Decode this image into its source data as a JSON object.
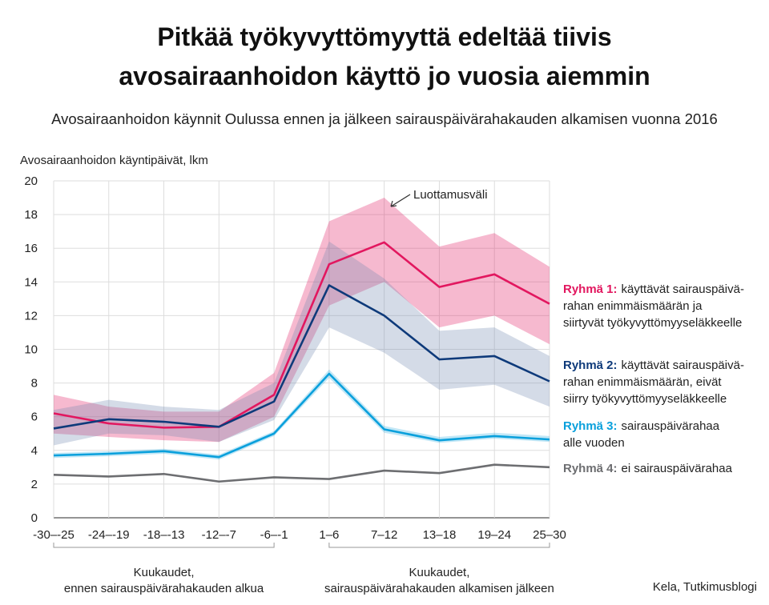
{
  "chart_data": {
    "type": "line",
    "title": [
      "Pitkää työkyvyttömyyttä edeltää tiivis",
      "avosairaanhoidon käyttö jo vuosia aiemmin"
    ],
    "subtitle": "Avosairaanhoidon käynnit Oulussa ennen ja jälkeen sairauspäivärahakauden alkamisen vuonna 2016",
    "y_label": "Avosairaanhoidon käyntipäivät, lkm",
    "categories": [
      "-30–-25",
      "-24–-19",
      "-18–-13",
      "-12–-7",
      "-6–-1",
      "1–6",
      "7–12",
      "13–18",
      "19–24",
      "25–30"
    ],
    "x_groups": [
      {
        "lines": [
          "Kuukaudet,",
          "ennen sairauspäivärahakauden alkua"
        ],
        "from": 0,
        "to": 4
      },
      {
        "lines": [
          "Kuukaudet,",
          "sairauspäivärahakauden alkamisen jälkeen"
        ],
        "from": 5,
        "to": 9
      }
    ],
    "annotation": "Luottamusväli",
    "source": "Kela, Tutkimusblogi",
    "ylim": [
      0,
      20
    ],
    "yticks": [
      0,
      2,
      4,
      6,
      8,
      10,
      12,
      14,
      16,
      18,
      20
    ],
    "grid": true,
    "series": [
      {
        "name": "Ryhmä 1:",
        "description": [
          "käyttävät sairauspäivä-",
          "rahan enimmäismäärän ja",
          "siirtyvät työkyvyttömyyseläkkeelle"
        ],
        "color": "#e2175f",
        "band_color": "#e2175f",
        "values": [
          6.2,
          5.6,
          5.35,
          5.4,
          7.3,
          15.05,
          16.35,
          13.7,
          14.45,
          12.7
        ],
        "lower": [
          5.0,
          4.8,
          4.6,
          4.5,
          6.0,
          12.6,
          14.0,
          11.3,
          12.0,
          10.3
        ],
        "upper": [
          7.3,
          6.6,
          6.3,
          6.3,
          8.6,
          17.6,
          19.0,
          16.1,
          16.9,
          14.9
        ]
      },
      {
        "name": "Ryhmä 2:",
        "description": [
          "käyttävät sairauspäivä-",
          "rahan enimmäismäärän, eivät",
          "siirry työkyvyttömyyseläkkeelle"
        ],
        "color": "#0e3a7a",
        "band_color": "#6f88b0",
        "values": [
          5.3,
          5.85,
          5.7,
          5.4,
          6.9,
          13.8,
          12.0,
          9.4,
          9.6,
          8.1
        ],
        "lower": [
          4.3,
          5.0,
          4.9,
          4.5,
          5.8,
          11.3,
          9.8,
          7.6,
          7.9,
          6.6
        ],
        "upper": [
          6.4,
          7.0,
          6.6,
          6.4,
          8.0,
          16.4,
          14.2,
          11.1,
          11.3,
          9.6
        ]
      },
      {
        "name": "Ryhmä 3:",
        "description": [
          "sairauspäivärahaa",
          "alle vuoden"
        ],
        "color": "#0aa0dc",
        "band_color": "#0aa0dc",
        "values": [
          3.7,
          3.8,
          3.95,
          3.6,
          5.0,
          8.55,
          5.25,
          4.6,
          4.85,
          4.65
        ],
        "lower": [
          3.55,
          3.65,
          3.8,
          3.45,
          4.85,
          8.3,
          5.05,
          4.45,
          4.7,
          4.5
        ],
        "upper": [
          3.85,
          3.95,
          4.1,
          3.75,
          5.15,
          8.8,
          5.45,
          4.8,
          5.05,
          4.85
        ]
      },
      {
        "name": "Ryhmä 4:",
        "description": [
          "ei sairauspäivärahaa"
        ],
        "color": "#6d6e71",
        "values": [
          2.55,
          2.45,
          2.6,
          2.15,
          2.4,
          2.3,
          2.8,
          2.65,
          3.15,
          3.0
        ]
      }
    ]
  }
}
